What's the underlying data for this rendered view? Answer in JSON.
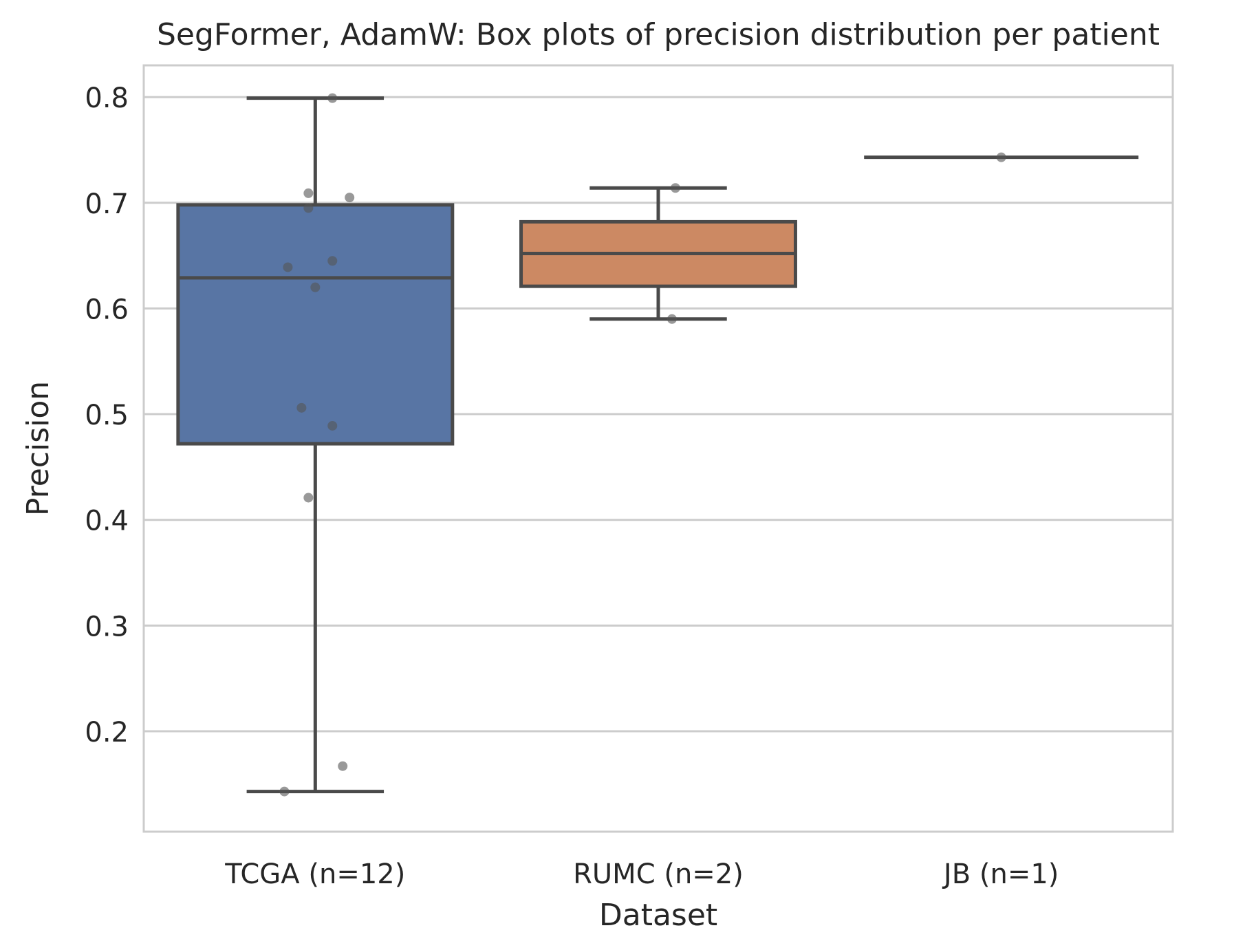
{
  "chart_data": {
    "type": "box",
    "title": "SegFormer, AdamW: Box plots of precision distribution per patient",
    "xlabel": "Dataset",
    "ylabel": "Precision",
    "ylim": [
      0.105,
      0.83
    ],
    "yticks": [
      0.2,
      0.3,
      0.4,
      0.5,
      0.6,
      0.7,
      0.8
    ],
    "ytick_labels": [
      "0.2",
      "0.3",
      "0.4",
      "0.5",
      "0.6",
      "0.7",
      "0.8"
    ],
    "grid": "horizontal",
    "categories": [
      "TCGA (n=12)",
      "RUMC (n=2)",
      "JB (n=1)"
    ],
    "boxes": [
      {
        "category": "TCGA (n=12)",
        "color": "#5875a4",
        "whisker_low": 0.143,
        "q1": 0.472,
        "median": 0.629,
        "q3": 0.698,
        "whisker_high": 0.799,
        "points": [
          0.799,
          0.709,
          0.705,
          0.695,
          0.645,
          0.639,
          0.62,
          0.506,
          0.489,
          0.421,
          0.167,
          0.143
        ],
        "jitter": [
          0.05,
          -0.02,
          0.1,
          -0.02,
          0.05,
          -0.08,
          0.0,
          -0.04,
          0.05,
          -0.02,
          0.08,
          -0.09
        ]
      },
      {
        "category": "RUMC (n=2)",
        "color": "#cc8963",
        "whisker_low": 0.59,
        "q1": 0.621,
        "median": 0.652,
        "q3": 0.682,
        "whisker_high": 0.714,
        "points": [
          0.714,
          0.59
        ],
        "jitter": [
          0.05,
          0.04
        ]
      },
      {
        "category": "JB (n=1)",
        "color": "#5f9e6e",
        "whisker_low": 0.743,
        "q1": 0.743,
        "median": 0.743,
        "q3": 0.743,
        "whisker_high": 0.743,
        "points": [
          0.743
        ],
        "jitter": [
          0.0
        ]
      }
    ],
    "colors": {
      "line": "#4a4a4a",
      "grid": "#cccccc",
      "points": "#555555"
    }
  }
}
